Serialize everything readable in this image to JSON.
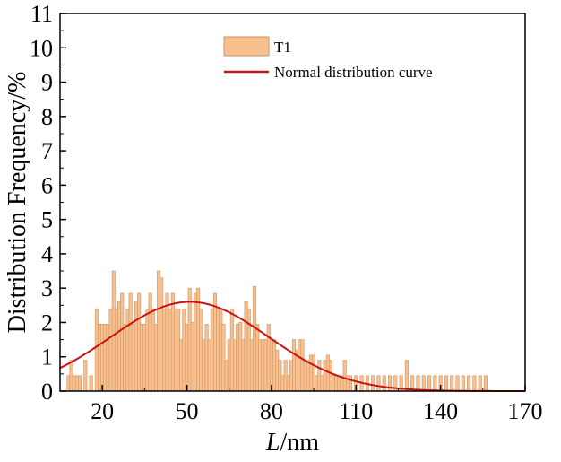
{
  "chart_data": {
    "type": "bar",
    "xlabel_italic": "L",
    "xlabel_rest": "/nm",
    "ylabel": "Distribution Frequency/%",
    "xlim": [
      5,
      170
    ],
    "ylim": [
      0,
      11
    ],
    "x_ticks": [
      20,
      50,
      80,
      110,
      140,
      170
    ],
    "y_ticks": [
      0,
      1,
      2,
      3,
      4,
      5,
      6,
      7,
      8,
      9,
      10,
      11
    ],
    "grid": false,
    "legend_position": "top-center",
    "bar_width": 1.1,
    "series": [
      {
        "name": "T1",
        "kind": "bar",
        "color": "#f9c08d",
        "edge_color": "#c9956a",
        "x": [
          8,
          9,
          10,
          11,
          12,
          14,
          16,
          18,
          19,
          20,
          21,
          22,
          23,
          24,
          25,
          26,
          27,
          28,
          29,
          30,
          31,
          32,
          33,
          34,
          35,
          36,
          37,
          38,
          39,
          40,
          41,
          42,
          43,
          44,
          45,
          46,
          47,
          48,
          49,
          50,
          51,
          52,
          53,
          54,
          55,
          56,
          57,
          58,
          59,
          60,
          61,
          62,
          63,
          64,
          65,
          66,
          67,
          68,
          69,
          70,
          71,
          72,
          73,
          74,
          75,
          76,
          77,
          78,
          79,
          80,
          81,
          82,
          83,
          84,
          85,
          86,
          87,
          88,
          89,
          90,
          91,
          92,
          93,
          94,
          95,
          96,
          97,
          98,
          99,
          100,
          101,
          102,
          103,
          104,
          105,
          106,
          107,
          108,
          110,
          112,
          114,
          116,
          118,
          120,
          122,
          124,
          126,
          128,
          130,
          132,
          134,
          136,
          138,
          140,
          142,
          144,
          146,
          148,
          150,
          152,
          154,
          156
        ],
        "values": [
          0.45,
          0.9,
          0.45,
          0.45,
          0.45,
          0.9,
          0.45,
          2.4,
          1.95,
          1.95,
          1.95,
          1.95,
          2.4,
          3.5,
          2.4,
          2.6,
          2.85,
          1.95,
          2.4,
          2.85,
          1.95,
          2.6,
          2.85,
          1.95,
          1.95,
          2.4,
          2.85,
          2.4,
          1.95,
          3.5,
          3.3,
          2.4,
          2.85,
          2.4,
          2.85,
          2.4,
          2.4,
          1.5,
          2.4,
          1.95,
          3.0,
          2.0,
          2.85,
          3.0,
          2.4,
          1.5,
          1.95,
          1.5,
          2.4,
          2.85,
          2.4,
          2.4,
          1.95,
          0.9,
          1.5,
          2.4,
          1.5,
          1.95,
          2.0,
          1.5,
          2.6,
          2.4,
          1.5,
          3.05,
          1.95,
          1.5,
          1.5,
          1.5,
          1.95,
          1.5,
          1.5,
          1.2,
          0.9,
          0.45,
          0.9,
          0.45,
          0.9,
          1.5,
          1.2,
          1.5,
          1.5,
          0.9,
          0.9,
          1.05,
          1.05,
          0.45,
          0.9,
          0.45,
          0.9,
          1.05,
          0.9,
          0.45,
          0.45,
          0.45,
          0.45,
          0.9,
          0.45,
          0.45,
          0.45,
          0.45,
          0.45,
          0.45,
          0.45,
          0.45,
          0.45,
          0.45,
          0.45,
          0.9,
          0.45,
          0.45,
          0.45,
          0.45,
          0.45,
          0.45,
          0.45,
          0.45,
          0.45,
          0.45,
          0.45,
          0.45,
          0.45,
          0.45
        ]
      },
      {
        "name": "Normal distribution curve",
        "kind": "normal-curve",
        "color": "#cc1111",
        "mean": 51,
        "std": 28,
        "peak": 2.6
      }
    ]
  }
}
